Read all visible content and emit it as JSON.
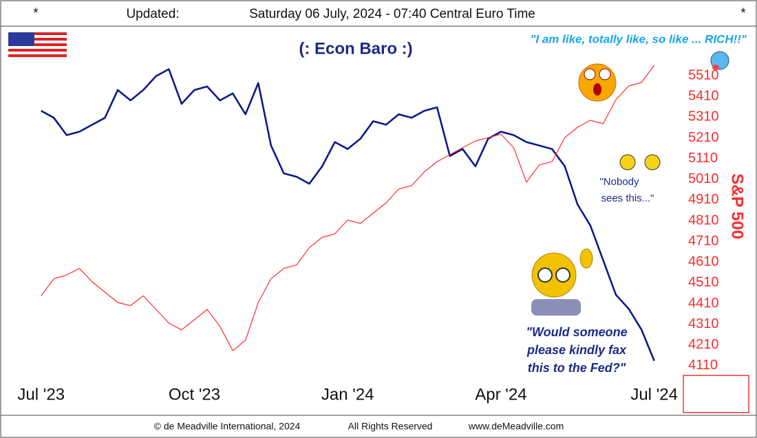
{
  "header": {
    "star_left": "*",
    "updated": "Updated:",
    "timestamp": "Saturday 06 July, 2024 - 07:40 Central Euro Time",
    "star_right": "*"
  },
  "chart_data": {
    "type": "line",
    "title": "(: Econ Baro :)",
    "y2label": "S&P 500",
    "annotation_top": "\"I am like, totally like, so like ... RICH!!\"",
    "annotation_middle": [
      "\"Nobody",
      "sees this...\""
    ],
    "annotation_bottom": [
      "\"Would someone",
      "please kindly fax",
      "this to the Fed?\""
    ],
    "x": [
      0,
      0.25,
      0.5,
      0.75,
      1,
      1.25,
      1.5,
      1.75,
      2,
      2.25,
      2.5,
      2.75,
      3,
      3.25,
      3.5,
      3.75,
      4,
      4.25,
      4.5,
      4.75,
      5,
      5.25,
      5.5,
      5.75,
      6,
      6.25,
      6.5,
      6.75,
      7,
      7.25,
      7.5,
      7.75,
      8,
      8.25,
      8.5,
      8.75,
      9,
      9.25,
      9.5,
      9.75,
      10,
      10.25,
      10.5,
      10.75,
      11,
      11.25,
      11.5,
      11.75,
      12
    ],
    "xlim": [
      -0.67,
      12.53
    ],
    "xticks": [
      {
        "value": 0,
        "label": "Jul '23"
      },
      {
        "value": 3,
        "label": "Oct '23"
      },
      {
        "value": 6,
        "label": "Jan '24"
      },
      {
        "value": 9,
        "label": "Apr '24"
      },
      {
        "value": 12,
        "label": "Jul '24"
      }
    ],
    "ylim": [
      0,
      100
    ],
    "y2lim": [
      4050,
      5726
    ],
    "y2ticks": [
      4110,
      4210,
      4310,
      4410,
      4510,
      4610,
      4710,
      4810,
      4910,
      5010,
      5110,
      5210,
      5310,
      5410,
      5510
    ],
    "grid": false,
    "series": [
      {
        "color": "#0a1a8a",
        "axis": "y",
        "values": [
          77,
          75,
          70,
          71,
          73,
          75,
          83,
          80,
          83,
          87,
          89,
          79,
          83,
          84,
          80,
          82,
          76,
          85,
          67,
          59,
          58,
          56,
          61,
          68,
          66,
          69,
          74,
          73,
          76,
          75,
          77,
          78,
          64,
          66,
          61,
          69,
          71,
          70,
          68,
          67,
          66,
          61,
          50,
          44,
          34,
          24,
          20,
          14,
          5
        ]
      },
      {
        "color": "#ff2a2a",
        "axis": "y2",
        "values": [
          4448,
          4530,
          4548,
          4580,
          4515,
          4465,
          4415,
          4400,
          4448,
          4382,
          4316,
          4283,
          4332,
          4382,
          4300,
          4183,
          4233,
          4415,
          4530,
          4580,
          4597,
          4680,
          4730,
          4747,
          4813,
          4797,
          4847,
          4896,
          4963,
          4979,
          5046,
          5095,
          5129,
          5162,
          5195,
          5211,
          5228,
          5162,
          4996,
          5079,
          5095,
          5211,
          5261,
          5295,
          5278,
          5394,
          5460,
          5477,
          5560
        ]
      }
    ]
  },
  "footer": {
    "copyright": "© de Meadville International, 2024",
    "rights": "All Rights Reserved",
    "site": "www.deMeadville.com"
  }
}
